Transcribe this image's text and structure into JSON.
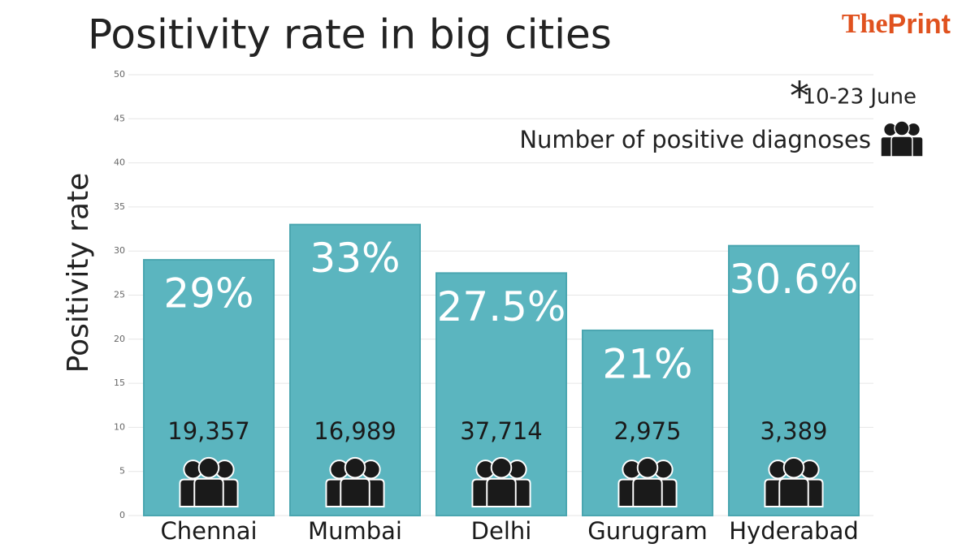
{
  "chart_data": {
    "type": "bar",
    "title": "Positivity rate in big cities",
    "brand": {
      "prefix": "The",
      "name": "Print"
    },
    "note_marker": "*",
    "note": "10-23 June",
    "y_label": "Positivity rate",
    "categories": [
      "Chennai",
      "Mumbai",
      "Delhi",
      "Gurugram",
      "Hyderabad"
    ],
    "values": [
      29,
      33,
      27.5,
      21,
      30.6
    ],
    "value_labels": [
      "29%",
      "33%",
      "27.5%",
      "21%",
      "30.6%"
    ],
    "color": "#5bb5bf",
    "diagnoses": {
      "name": "Number of positive diagnoses",
      "values": [
        19357,
        16989,
        37714,
        2975,
        3389
      ],
      "value_labels": [
        "19,357",
        "16,989",
        "37,714",
        "2,975",
        "3,389"
      ]
    },
    "ylim": [
      0,
      50
    ],
    "yticks": [
      0,
      5,
      10,
      15,
      20,
      25,
      30,
      35,
      40,
      45,
      50
    ],
    "grid": true
  }
}
